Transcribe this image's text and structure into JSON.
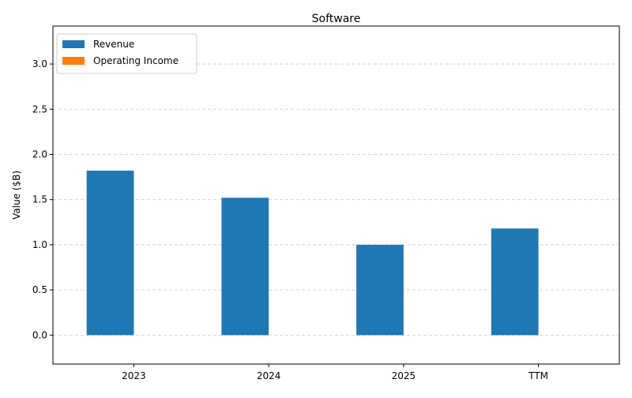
{
  "chart_data": {
    "type": "bar",
    "title": "Software",
    "xlabel": "",
    "ylabel": "Value ($B)",
    "categories": [
      "2023",
      "2024",
      "2025",
      "TTM"
    ],
    "series": [
      {
        "name": "Revenue",
        "color": "#1f77b4",
        "values": [
          1.82,
          1.52,
          1.0,
          1.18
        ]
      },
      {
        "name": "Operating Income",
        "color": "#ff7f0e",
        "values": [
          0,
          0,
          0,
          0
        ]
      }
    ],
    "ylim": [
      -0.32,
      3.42
    ],
    "yticks": [
      "0.0",
      "0.5",
      "1.0",
      "1.5",
      "2.0",
      "2.5",
      "3.0"
    ],
    "grid": true,
    "legend_position": "top-left"
  }
}
